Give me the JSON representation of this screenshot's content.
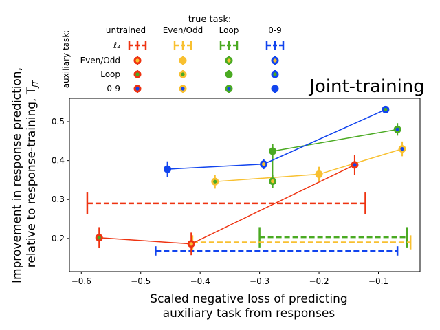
{
  "chart_data": {
    "type": "scatter",
    "title": "Joint-training",
    "xlabel": [
      "Scaled negative loss of predicting",
      "auxiliary task from responses"
    ],
    "ylabel": [
      "Improvement in response prediction,",
      "relative to response-training, T"
    ],
    "ylabel_subscript": "JT",
    "xlim": [
      -0.62,
      -0.03
    ],
    "ylim": [
      0.115,
      0.56
    ],
    "xticks": [
      -0.6,
      -0.5,
      -0.4,
      -0.3,
      -0.2,
      -0.1
    ],
    "xtick_labels": [
      "−0.6",
      "−0.5",
      "−0.4",
      "−0.3",
      "−0.2",
      "−0.1"
    ],
    "yticks": [
      0.2,
      0.3,
      0.4,
      0.5
    ],
    "ytick_labels": [
      "0.2",
      "0.3",
      "0.4",
      "0.5"
    ],
    "grid": false,
    "colors": {
      "untrained": "#ee3311",
      "even_odd": "#f8c030",
      "loop": "#4aaa22",
      "zero_nine": "#1144ee"
    },
    "legend": {
      "title": "true task:",
      "side_label": "auxiliary task:",
      "columns": [
        "untrained",
        "Even/Odd",
        "Loop",
        "0-9"
      ],
      "column_keys": [
        "untrained",
        "even_odd",
        "loop",
        "zero_nine"
      ],
      "rows": [
        "ℓ₂",
        "Even/Odd",
        "Loop",
        "0-9"
      ],
      "row_keys": [
        "l2",
        "even_odd",
        "loop",
        "zero_nine"
      ]
    },
    "l2_intervals": [
      {
        "task": "untrained",
        "xmin": -0.59,
        "xmax": -0.122,
        "y": 0.29,
        "tick_half": 0.028
      },
      {
        "task": "loop",
        "xmin": -0.3,
        "xmax": -0.052,
        "y": 0.203,
        "tick_half": 0.026
      },
      {
        "task": "even_odd",
        "xmin": -0.413,
        "xmax": -0.046,
        "y": 0.19,
        "tick_half": 0.018
      },
      {
        "task": "zero_nine",
        "xmin": -0.475,
        "xmax": -0.068,
        "y": 0.168,
        "tick_half": 0.012
      }
    ],
    "series": [
      {
        "task": "untrained",
        "points": [
          {
            "aux": "loop",
            "x": -0.57,
            "y": 0.202,
            "err": 0.027
          },
          {
            "aux": "even_odd",
            "x": -0.415,
            "y": 0.186,
            "err": 0.029
          },
          {
            "aux": "zero_nine",
            "x": -0.14,
            "y": 0.389,
            "err": 0.025
          }
        ]
      },
      {
        "task": "even_odd",
        "points": [
          {
            "aux": "loop",
            "x": -0.375,
            "y": 0.346,
            "err": 0.018
          },
          {
            "aux": "even_odd",
            "x": -0.2,
            "y": 0.365,
            "err": 0.019
          },
          {
            "aux": "zero_nine",
            "x": -0.06,
            "y": 0.43,
            "err": 0.019
          }
        ]
      },
      {
        "task": "loop",
        "points": [
          {
            "aux": "even_odd",
            "x": -0.278,
            "y": 0.347,
            "err": 0.017
          },
          {
            "aux": "loop",
            "x": -0.278,
            "y": 0.424,
            "err": 0.019
          },
          {
            "aux": "zero_nine",
            "x": -0.068,
            "y": 0.48,
            "err": 0.016
          }
        ]
      },
      {
        "task": "zero_nine",
        "points": [
          {
            "aux": "zero_nine",
            "x": -0.455,
            "y": 0.378,
            "err": 0.02
          },
          {
            "aux": "even_odd",
            "x": -0.293,
            "y": 0.391,
            "err": 0.013
          },
          {
            "aux": "loop",
            "x": -0.088,
            "y": 0.531,
            "err": 0.008
          }
        ]
      }
    ]
  }
}
